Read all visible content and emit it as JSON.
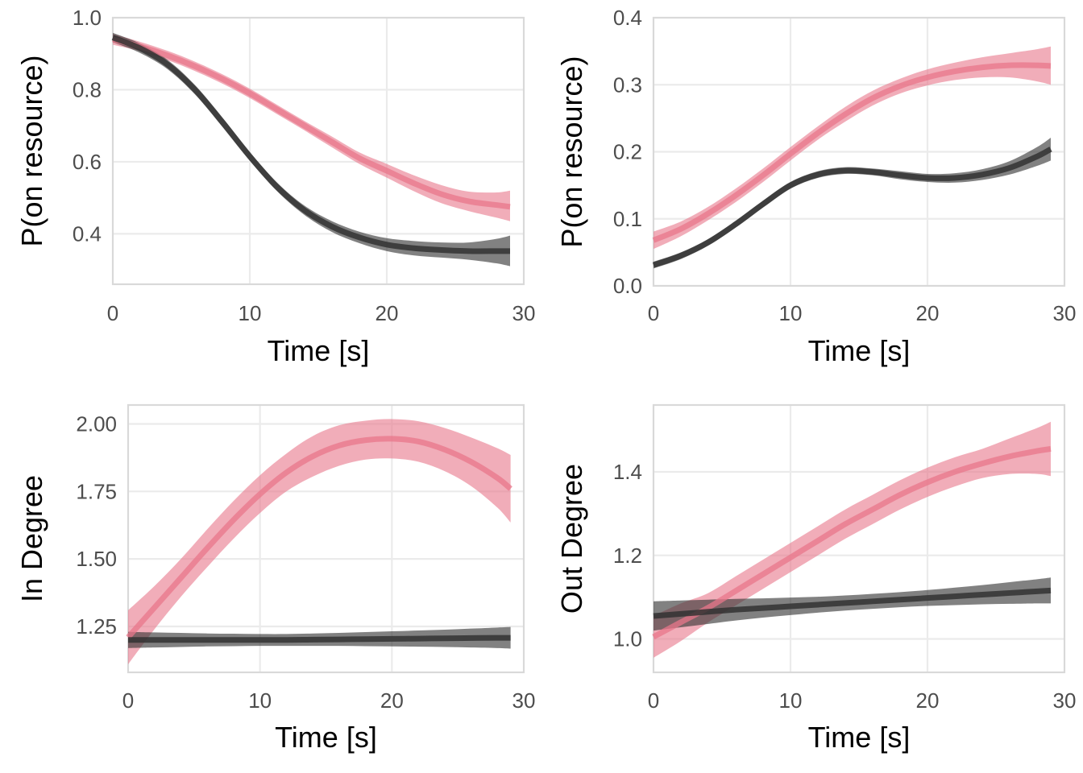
{
  "colors": {
    "groupA_line": "#e8778b",
    "groupA_band": "#e8778b",
    "groupB_line": "#333333",
    "groupB_band": "#333333",
    "grid": "#ebebeb",
    "frame": "#d9d9d9",
    "tick_text": "#4d4d4d",
    "axis_title": "#000000"
  },
  "chart_data": [
    {
      "type": "line",
      "panel": "top-left",
      "title": "",
      "xlabel": "Time [s]",
      "ylabel": "P(on resource)",
      "xlim": [
        0,
        30
      ],
      "ylim": [
        0.26,
        1.0
      ],
      "xticks": [
        0,
        10,
        20,
        30
      ],
      "xtick_labels": [
        "0",
        "10",
        "20",
        "30"
      ],
      "yticks": [
        0.4,
        0.6,
        0.8,
        1.0
      ],
      "ytick_labels": [
        "0.4",
        "0.6",
        "0.8",
        "1.0"
      ],
      "grid": true,
      "x": [
        0,
        2,
        4,
        6,
        8,
        10,
        12,
        14,
        16,
        18,
        20,
        22,
        24,
        26,
        28,
        29
      ],
      "series": [
        {
          "name": "pink",
          "color": "#e8778b",
          "values": [
            0.94,
            0.92,
            0.895,
            0.865,
            0.83,
            0.79,
            0.745,
            0.7,
            0.655,
            0.61,
            0.575,
            0.54,
            0.51,
            0.49,
            0.48,
            0.475
          ],
          "lower": [
            0.925,
            0.907,
            0.882,
            0.852,
            0.817,
            0.777,
            0.732,
            0.687,
            0.64,
            0.594,
            0.556,
            0.518,
            0.485,
            0.463,
            0.445,
            0.435
          ],
          "upper": [
            0.955,
            0.933,
            0.908,
            0.878,
            0.843,
            0.803,
            0.758,
            0.713,
            0.67,
            0.626,
            0.594,
            0.562,
            0.535,
            0.517,
            0.515,
            0.52
          ]
        },
        {
          "name": "black",
          "color": "#333333",
          "values": [
            0.945,
            0.915,
            0.87,
            0.8,
            0.71,
            0.615,
            0.53,
            0.465,
            0.42,
            0.39,
            0.37,
            0.36,
            0.355,
            0.352,
            0.352,
            0.352
          ],
          "lower": [
            0.932,
            0.902,
            0.857,
            0.787,
            0.697,
            0.603,
            0.518,
            0.452,
            0.405,
            0.374,
            0.352,
            0.34,
            0.334,
            0.328,
            0.318,
            0.31
          ],
          "upper": [
            0.958,
            0.928,
            0.883,
            0.813,
            0.723,
            0.627,
            0.542,
            0.478,
            0.435,
            0.406,
            0.388,
            0.38,
            0.376,
            0.376,
            0.386,
            0.395
          ]
        }
      ]
    },
    {
      "type": "line",
      "panel": "top-right",
      "title": "",
      "xlabel": "Time [s]",
      "ylabel": "P(on resource)",
      "xlim": [
        0,
        30
      ],
      "ylim": [
        0.0,
        0.4
      ],
      "xticks": [
        0,
        10,
        20,
        30
      ],
      "xtick_labels": [
        "0",
        "10",
        "20",
        "30"
      ],
      "yticks": [
        0.0,
        0.1,
        0.2,
        0.3,
        0.4
      ],
      "ytick_labels": [
        "0.0",
        "0.1",
        "0.2",
        "0.3",
        "0.4"
      ],
      "grid": true,
      "x": [
        0,
        2,
        4,
        6,
        8,
        10,
        12,
        14,
        16,
        18,
        20,
        22,
        24,
        26,
        28,
        29
      ],
      "series": [
        {
          "name": "pink",
          "color": "#e8778b",
          "values": [
            0.068,
            0.085,
            0.108,
            0.135,
            0.165,
            0.197,
            0.228,
            0.256,
            0.28,
            0.298,
            0.311,
            0.32,
            0.326,
            0.329,
            0.329,
            0.328
          ],
          "lower": [
            0.055,
            0.074,
            0.098,
            0.125,
            0.155,
            0.187,
            0.218,
            0.245,
            0.269,
            0.287,
            0.299,
            0.307,
            0.311,
            0.311,
            0.305,
            0.3
          ],
          "upper": [
            0.081,
            0.096,
            0.118,
            0.145,
            0.175,
            0.207,
            0.238,
            0.267,
            0.291,
            0.309,
            0.323,
            0.333,
            0.341,
            0.347,
            0.353,
            0.357
          ]
        },
        {
          "name": "black",
          "color": "#333333",
          "values": [
            0.031,
            0.045,
            0.065,
            0.092,
            0.122,
            0.15,
            0.166,
            0.172,
            0.17,
            0.165,
            0.161,
            0.161,
            0.166,
            0.176,
            0.193,
            0.204
          ],
          "lower": [
            0.026,
            0.04,
            0.06,
            0.087,
            0.117,
            0.145,
            0.161,
            0.167,
            0.165,
            0.159,
            0.155,
            0.154,
            0.158,
            0.166,
            0.179,
            0.187
          ],
          "upper": [
            0.036,
            0.05,
            0.07,
            0.097,
            0.127,
            0.155,
            0.171,
            0.177,
            0.175,
            0.171,
            0.167,
            0.168,
            0.174,
            0.186,
            0.207,
            0.221
          ]
        }
      ]
    },
    {
      "type": "line",
      "panel": "bottom-left",
      "title": "",
      "xlabel": "Time [s]",
      "ylabel": "In Degree",
      "xlim": [
        0,
        30
      ],
      "ylim": [
        1.08,
        2.07
      ],
      "xticks": [
        0,
        10,
        20,
        30
      ],
      "xtick_labels": [
        "0",
        "10",
        "20",
        "30"
      ],
      "yticks": [
        1.25,
        1.5,
        1.75,
        2.0
      ],
      "ytick_labels": [
        "1.25",
        "1.50",
        "1.75",
        "2.00"
      ],
      "grid": true,
      "x": [
        0,
        2,
        4,
        6,
        8,
        10,
        12,
        14,
        16,
        18,
        20,
        22,
        24,
        26,
        28,
        29
      ],
      "series": [
        {
          "name": "pink",
          "color": "#e8778b",
          "values": [
            1.21,
            1.32,
            1.43,
            1.54,
            1.645,
            1.74,
            1.82,
            1.88,
            1.92,
            1.94,
            1.945,
            1.935,
            1.905,
            1.86,
            1.8,
            1.76
          ],
          "lower": [
            1.11,
            1.24,
            1.36,
            1.47,
            1.575,
            1.67,
            1.75,
            1.805,
            1.845,
            1.868,
            1.872,
            1.86,
            1.825,
            1.77,
            1.69,
            1.635
          ],
          "upper": [
            1.31,
            1.4,
            1.5,
            1.61,
            1.715,
            1.81,
            1.89,
            1.955,
            1.995,
            2.012,
            2.018,
            2.01,
            1.985,
            1.95,
            1.91,
            1.885
          ]
        },
        {
          "name": "black",
          "color": "#333333",
          "values": [
            1.2,
            1.2,
            1.2,
            1.2,
            1.2,
            1.2,
            1.2,
            1.201,
            1.202,
            1.203,
            1.204,
            1.205,
            1.206,
            1.207,
            1.208,
            1.208
          ],
          "lower": [
            1.17,
            1.172,
            1.174,
            1.176,
            1.177,
            1.178,
            1.178,
            1.178,
            1.178,
            1.177,
            1.176,
            1.175,
            1.174,
            1.172,
            1.17,
            1.168
          ],
          "upper": [
            1.23,
            1.228,
            1.226,
            1.224,
            1.223,
            1.222,
            1.222,
            1.224,
            1.226,
            1.229,
            1.232,
            1.235,
            1.238,
            1.242,
            1.246,
            1.248
          ]
        }
      ]
    },
    {
      "type": "line",
      "panel": "bottom-right",
      "title": "",
      "xlabel": "Time [s]",
      "ylabel": "Out Degree",
      "xlim": [
        0,
        30
      ],
      "ylim": [
        0.92,
        1.56
      ],
      "xticks": [
        0,
        10,
        20,
        30
      ],
      "xtick_labels": [
        "0",
        "10",
        "20",
        "30"
      ],
      "yticks": [
        1.0,
        1.2,
        1.4
      ],
      "ytick_labels": [
        "1.0",
        "1.2",
        "1.4"
      ],
      "grid": true,
      "x": [
        0,
        2,
        4,
        6,
        8,
        10,
        12,
        14,
        16,
        18,
        20,
        22,
        24,
        26,
        28,
        29
      ],
      "series": [
        {
          "name": "pink",
          "color": "#e8778b",
          "values": [
            1.005,
            1.04,
            1.075,
            1.115,
            1.155,
            1.195,
            1.235,
            1.275,
            1.31,
            1.345,
            1.375,
            1.4,
            1.42,
            1.437,
            1.45,
            1.455
          ],
          "lower": [
            0.955,
            0.995,
            1.04,
            1.08,
            1.12,
            1.16,
            1.2,
            1.24,
            1.275,
            1.31,
            1.34,
            1.365,
            1.385,
            1.395,
            1.395,
            1.39
          ],
          "upper": [
            1.055,
            1.085,
            1.11,
            1.15,
            1.19,
            1.23,
            1.27,
            1.31,
            1.345,
            1.38,
            1.41,
            1.435,
            1.455,
            1.48,
            1.505,
            1.52
          ]
        },
        {
          "name": "black",
          "color": "#333333",
          "values": [
            1.055,
            1.06,
            1.065,
            1.07,
            1.074,
            1.078,
            1.082,
            1.086,
            1.09,
            1.094,
            1.098,
            1.102,
            1.106,
            1.11,
            1.114,
            1.116
          ],
          "lower": [
            1.02,
            1.028,
            1.036,
            1.044,
            1.051,
            1.057,
            1.063,
            1.068,
            1.072,
            1.076,
            1.079,
            1.081,
            1.083,
            1.084,
            1.085,
            1.085
          ],
          "upper": [
            1.09,
            1.092,
            1.094,
            1.096,
            1.097,
            1.099,
            1.101,
            1.104,
            1.108,
            1.112,
            1.117,
            1.123,
            1.129,
            1.136,
            1.143,
            1.147
          ]
        }
      ]
    }
  ]
}
